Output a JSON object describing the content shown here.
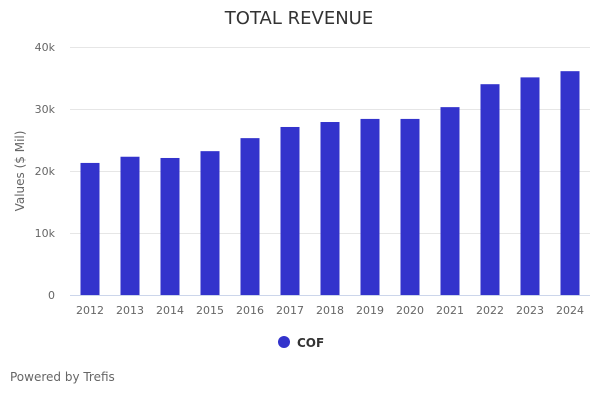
{
  "chart_data": {
    "type": "bar",
    "title": "TOTAL REVENUE",
    "ylabel": "Values ($ Mil)",
    "xlabel": "",
    "categories": [
      "2012",
      "2013",
      "2014",
      "2015",
      "2016",
      "2017",
      "2018",
      "2019",
      "2020",
      "2021",
      "2022",
      "2023",
      "2024"
    ],
    "series": [
      {
        "name": "COF",
        "color": "#3333cc",
        "values": [
          21300,
          22300,
          22100,
          23200,
          25300,
          27100,
          27900,
          28400,
          28400,
          30300,
          34000,
          35100,
          36100
        ]
      }
    ],
    "ylim": [
      0,
      40000
    ],
    "yticks": [
      0,
      10000,
      20000,
      30000,
      40000
    ],
    "ytick_labels": [
      "0",
      "10k",
      "20k",
      "30k",
      "40k"
    ],
    "grid": true,
    "legend": "bottom-center"
  },
  "footer": {
    "text": "Powered by Trefis"
  }
}
